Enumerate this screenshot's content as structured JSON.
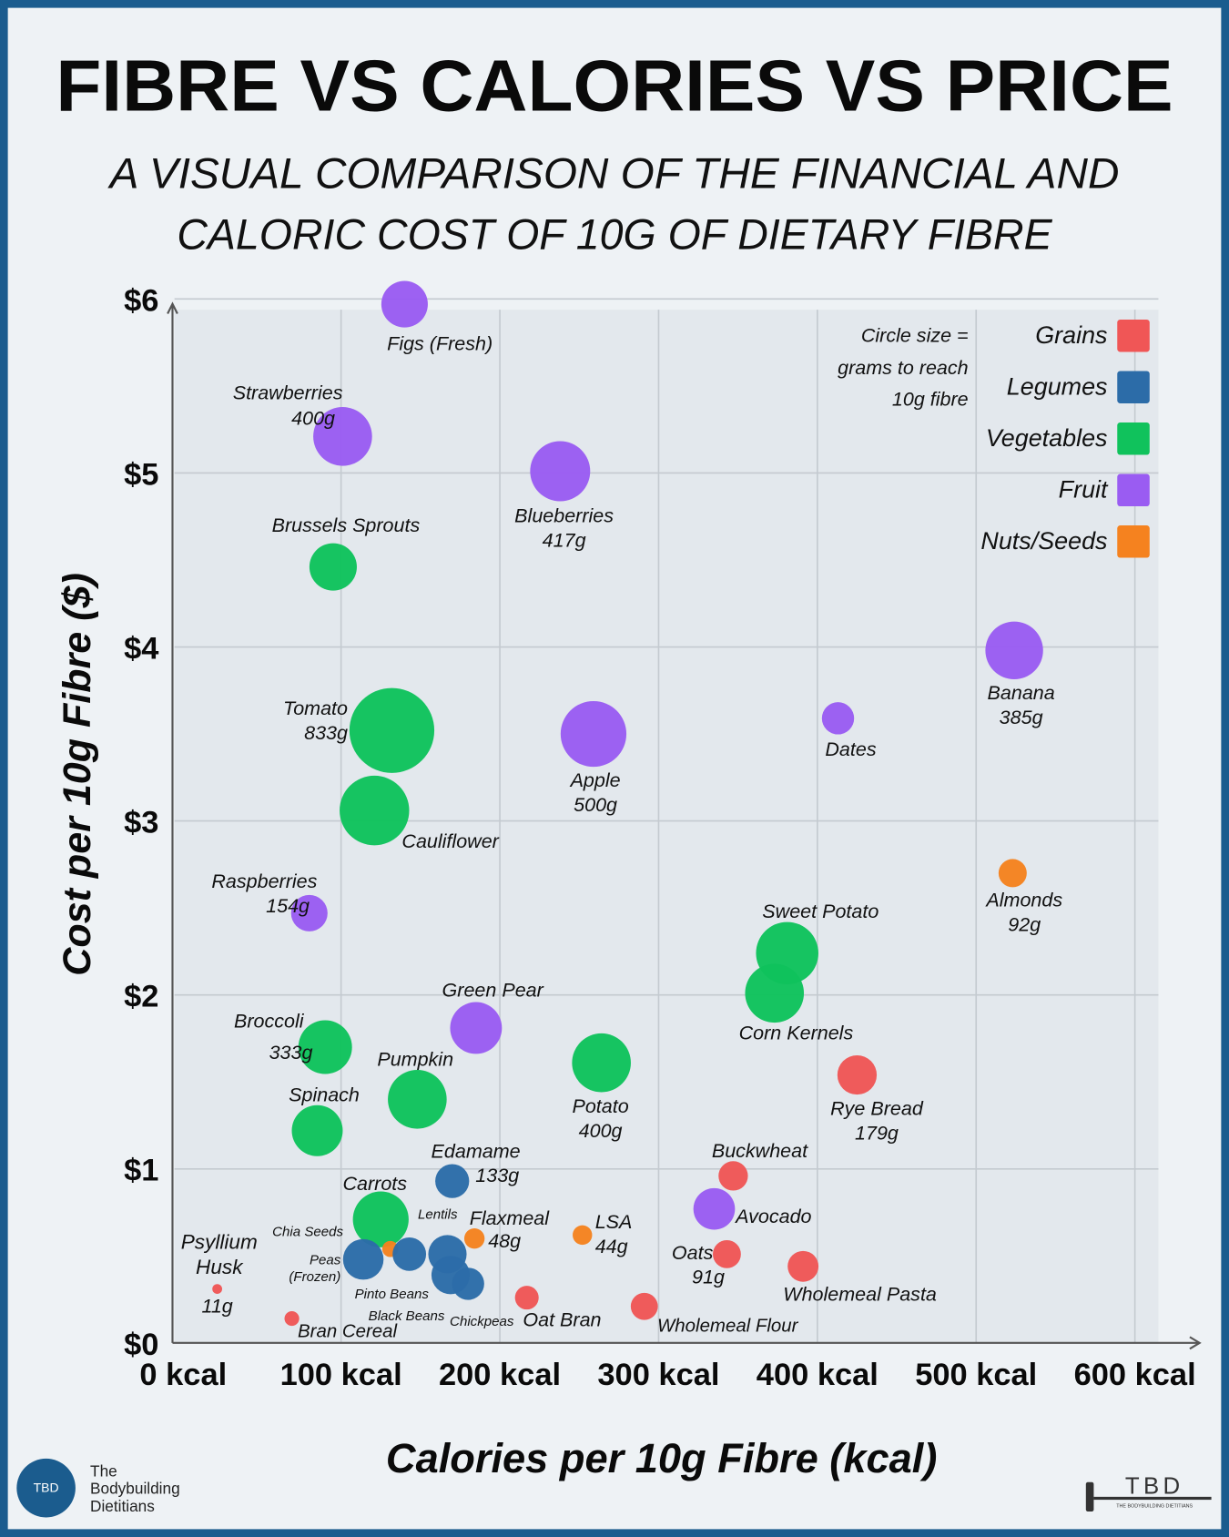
{
  "title": "FIBRE VS CALORIES VS PRICE",
  "subtitle_lines": [
    "A VISUAL COMPARISON OF THE FINANCIAL AND",
    "CALORIC COST OF 10G OF DIETARY FIBRE"
  ],
  "size_note_lines": [
    "Circle size =",
    "grams to reach",
    "10g fibre"
  ],
  "brand": {
    "logo_text": "TBD",
    "name_lines": [
      "The",
      "Bodybuilding",
      "Dietitians"
    ],
    "right_logo_text": "TBD",
    "right_logo_sub": "THE BODYBUILDING DIETITIANS"
  },
  "chart_data": {
    "type": "scatter",
    "title": "FIBRE VS CALORIES VS PRICE",
    "xlabel": "Calories per 10g Fibre (kcal)",
    "ylabel": "Cost per 10g Fibre ($)",
    "xlim": [
      0,
      615
    ],
    "ylim": [
      0,
      6.05
    ],
    "x_ticks": [
      0,
      100,
      200,
      300,
      400,
      500,
      600
    ],
    "x_tick_labels": [
      "0 kcal",
      "100 kcal",
      "200 kcal",
      "300 kcal",
      "400 kcal",
      "500 kcal",
      "600 kcal"
    ],
    "y_ticks": [
      0,
      1,
      2,
      3,
      4,
      5,
      6
    ],
    "y_tick_labels": [
      "$0",
      "$1",
      "$2",
      "$3",
      "$4",
      "$5",
      "$6"
    ],
    "grid": true,
    "legend_position": "top-right",
    "size_encoding": "grams to reach 10g fibre",
    "categories": [
      {
        "name": "Grains",
        "color": "#f05656"
      },
      {
        "name": "Legumes",
        "color": "#2c6ca8"
      },
      {
        "name": "Vegetables",
        "color": "#10c25c"
      },
      {
        "name": "Fruit",
        "color": "#9a5cf2"
      },
      {
        "name": "Nuts/Seeds",
        "color": "#f5821f"
      }
    ],
    "points": [
      {
        "label": [
          "Figs (Fresh)"
        ],
        "grams": "",
        "category": "Fruit",
        "x": 140,
        "y": 5.97,
        "size": 250
      },
      {
        "label": [
          "Strawberries"
        ],
        "grams": "400g",
        "category": "Fruit",
        "x": 101,
        "y": 5.21,
        "size": 400
      },
      {
        "label": [
          "Blueberries"
        ],
        "grams": "417g",
        "category": "Fruit",
        "x": 238,
        "y": 5.01,
        "size": 417
      },
      {
        "label": [
          "Brussels Sprouts"
        ],
        "grams": "",
        "category": "Vegetables",
        "x": 95,
        "y": 4.46,
        "size": 260
      },
      {
        "label": [
          "Banana"
        ],
        "grams": "385g",
        "category": "Fruit",
        "x": 524,
        "y": 3.98,
        "size": 385
      },
      {
        "label": [
          "Dates"
        ],
        "grams": "",
        "category": "Fruit",
        "x": 413,
        "y": 3.59,
        "size": 120
      },
      {
        "label": [
          "Tomato"
        ],
        "grams": "833g",
        "category": "Vegetables",
        "x": 132,
        "y": 3.52,
        "size": 833
      },
      {
        "label": [
          "Apple"
        ],
        "grams": "500g",
        "category": "Fruit",
        "x": 259,
        "y": 3.5,
        "size": 500
      },
      {
        "label": [
          "Cauliflower"
        ],
        "grams": "",
        "category": "Vegetables",
        "x": 121,
        "y": 3.06,
        "size": 560
      },
      {
        "label": [
          "Almonds"
        ],
        "grams": "92g",
        "category": "Nuts/Seeds",
        "x": 523,
        "y": 2.7,
        "size": 92
      },
      {
        "label": [
          "Raspberries"
        ],
        "grams": "154g",
        "category": "Fruit",
        "x": 80,
        "y": 2.47,
        "size": 154
      },
      {
        "label": [
          "Sweet Potato"
        ],
        "grams": "",
        "category": "Vegetables",
        "x": 381,
        "y": 2.24,
        "size": 450
      },
      {
        "label": [
          "Corn Kernels"
        ],
        "grams": "",
        "category": "Vegetables",
        "x": 373,
        "y": 2.01,
        "size": 400
      },
      {
        "label": [
          "Green Pear"
        ],
        "grams": "",
        "category": "Fruit",
        "x": 185,
        "y": 1.81,
        "size": 310
      },
      {
        "label": [
          "Broccoli"
        ],
        "grams": "333g",
        "category": "Vegetables",
        "x": 90,
        "y": 1.7,
        "size": 333
      },
      {
        "label": [
          "Potato"
        ],
        "grams": "400g",
        "category": "Vegetables",
        "x": 264,
        "y": 1.61,
        "size": 400
      },
      {
        "label": [
          "Pumpkin"
        ],
        "grams": "",
        "category": "Vegetables",
        "x": 148,
        "y": 1.4,
        "size": 400
      },
      {
        "label": [
          "Rye Bread"
        ],
        "grams": "179g",
        "category": "Grains",
        "x": 425,
        "y": 1.54,
        "size": 179
      },
      {
        "label": [
          "Spinach"
        ],
        "grams": "",
        "category": "Vegetables",
        "x": 85,
        "y": 1.22,
        "size": 300
      },
      {
        "label": [
          "Edamame"
        ],
        "grams": "133g",
        "category": "Legumes",
        "x": 170,
        "y": 0.93,
        "size": 133
      },
      {
        "label": [
          "Buckwheat"
        ],
        "grams": "",
        "category": "Grains",
        "x": 347,
        "y": 0.96,
        "size": 100
      },
      {
        "label": [
          "Avocado"
        ],
        "grams": "",
        "category": "Fruit",
        "x": 335,
        "y": 0.77,
        "size": 200
      },
      {
        "label": [
          "Carrots"
        ],
        "grams": "",
        "category": "Vegetables",
        "x": 125,
        "y": 0.71,
        "size": 360
      },
      {
        "label": [
          "Flaxmeal"
        ],
        "grams": "48g",
        "category": "Nuts/Seeds",
        "x": 184,
        "y": 0.6,
        "size": 48
      },
      {
        "label": [
          "LSA"
        ],
        "grams": "44g",
        "category": "Nuts/Seeds",
        "x": 252,
        "y": 0.62,
        "size": 44
      },
      {
        "label": [
          "Oats"
        ],
        "grams": "91g",
        "category": "Grains",
        "x": 343,
        "y": 0.51,
        "size": 91
      },
      {
        "label": [
          "Wholemeal Pasta"
        ],
        "grams": "",
        "category": "Grains",
        "x": 391,
        "y": 0.44,
        "size": 110
      },
      {
        "label": [
          "Chia Seeds"
        ],
        "grams": "",
        "category": "Nuts/Seeds",
        "x": 131,
        "y": 0.54,
        "size": 30
      },
      {
        "label": [
          "Peas",
          "(Frozen)"
        ],
        "grams": "",
        "category": "Legumes",
        "x": 114,
        "y": 0.48,
        "size": 190
      },
      {
        "label": [
          "Pinto Beans"
        ],
        "grams": "",
        "category": "Legumes",
        "x": 143,
        "y": 0.51,
        "size": 130
      },
      {
        "label": [
          "Lentils"
        ],
        "grams": "",
        "category": "Legumes",
        "x": 167,
        "y": 0.51,
        "size": 170
      },
      {
        "label": [
          "Black Beans"
        ],
        "grams": "",
        "category": "Legumes",
        "x": 169,
        "y": 0.39,
        "size": 170
      },
      {
        "label": [
          "Chickpeas"
        ],
        "grams": "",
        "category": "Legumes",
        "x": 180,
        "y": 0.34,
        "size": 120
      },
      {
        "label": [
          "Oat Bran"
        ],
        "grams": "",
        "category": "Grains",
        "x": 217,
        "y": 0.26,
        "size": 65
      },
      {
        "label": [
          "Wholemeal Flour"
        ],
        "grams": "",
        "category": "Grains",
        "x": 291,
        "y": 0.21,
        "size": 85
      },
      {
        "label": [
          "Psyllium",
          "Husk"
        ],
        "grams": "11g",
        "category": "Grains",
        "x": 22,
        "y": 0.31,
        "size": 11
      },
      {
        "label": [
          "Bran Cereal"
        ],
        "grams": "",
        "category": "Grains",
        "x": 69,
        "y": 0.14,
        "size": 25
      }
    ]
  }
}
